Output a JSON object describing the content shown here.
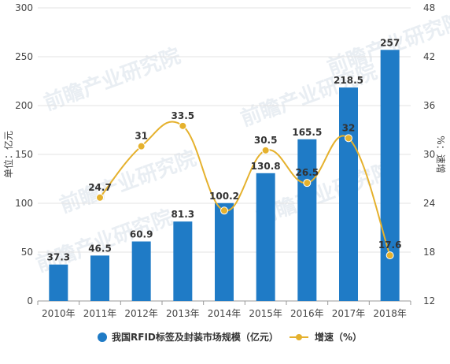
{
  "chart_data": {
    "type": "bar",
    "categories": [
      "2010年",
      "2011年",
      "2012年",
      "2013年",
      "2014年",
      "2015年",
      "2016年",
      "2017年",
      "2018年"
    ],
    "series": [
      {
        "name": "我国RFID标签及封装市场规模（亿元）",
        "type": "bar",
        "axis": "left",
        "color": "#1f7bc6",
        "values": [
          37.3,
          46.5,
          60.9,
          81.3,
          100.2,
          130.8,
          165.5,
          218.5,
          257
        ]
      },
      {
        "name": "增速（%）",
        "type": "line",
        "axis": "right",
        "color": "#e5b12d",
        "values": [
          null,
          24.7,
          31,
          33.5,
          23.1,
          30.5,
          26.5,
          32,
          17.6
        ],
        "labels": [
          "",
          "24.7",
          "31",
          "33.5",
          "",
          "30.5",
          "26.5",
          "32",
          "17.6"
        ]
      }
    ],
    "ylabel": "单位：亿元",
    "ylim": [
      0,
      300
    ],
    "yticks": [
      "0",
      "50",
      "100",
      "150",
      "200",
      "250",
      "300"
    ],
    "y2label": "%：速增",
    "y2lim": [
      12,
      48
    ],
    "y2ticks": [
      "12",
      "18",
      "24",
      "30",
      "36",
      "42",
      "48"
    ],
    "grid": "horizontal",
    "legend_position": "bottom",
    "watermark": "前瞻产业研究院"
  }
}
